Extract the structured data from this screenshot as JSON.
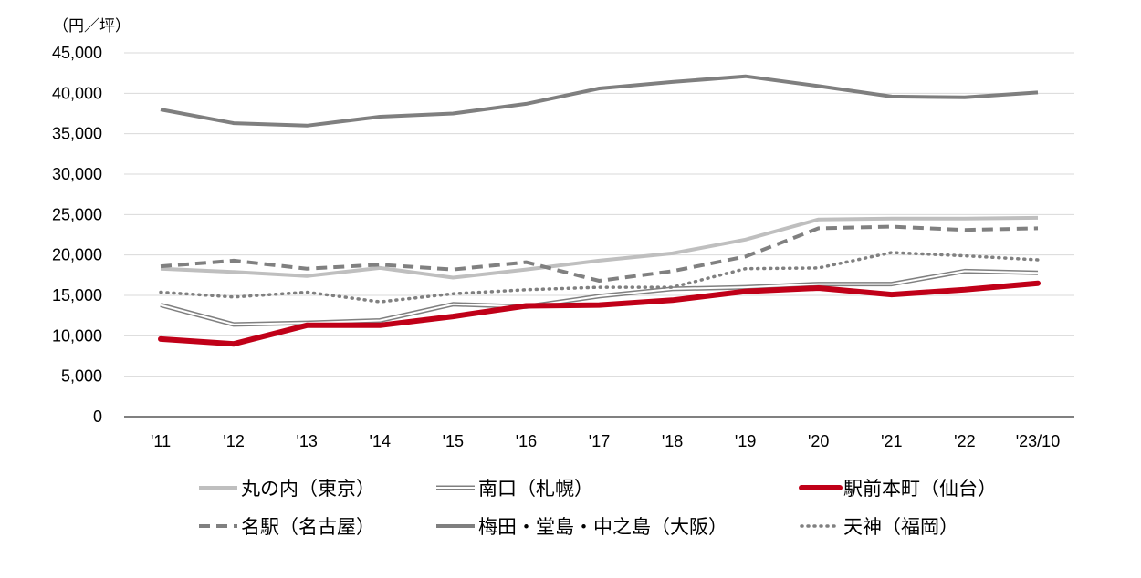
{
  "chart_data": {
    "type": "line",
    "unit_label": "（円／坪）",
    "categories": [
      "'11",
      "'12",
      "'13",
      "'14",
      "'15",
      "'16",
      "'17",
      "'18",
      "'19",
      "'20",
      "'21",
      "'22",
      "'23/10"
    ],
    "ylim": [
      0,
      45000
    ],
    "yticks": [
      0,
      5000,
      10000,
      15000,
      20000,
      25000,
      30000,
      35000,
      40000,
      45000
    ],
    "ytick_labels": [
      "0",
      "5,000",
      "10,000",
      "15,000",
      "20,000",
      "25,000",
      "30,000",
      "35,000",
      "40,000",
      "45,000"
    ],
    "grid": true,
    "legend_position": "bottom",
    "series": [
      {
        "id": "marunouchi",
        "name": "丸の内（東京）",
        "color": "#bfbfbf",
        "style": "solid",
        "values": [
          18300,
          17900,
          17400,
          18400,
          17200,
          18200,
          19300,
          20200,
          21900,
          24400,
          24500,
          24500,
          24600
        ]
      },
      {
        "id": "meieki",
        "name": "名駅（名古屋）",
        "color": "#808080",
        "style": "dashed",
        "values": [
          18600,
          19300,
          18300,
          18800,
          18200,
          19100,
          16800,
          18000,
          19800,
          23300,
          23500,
          23100,
          23300
        ]
      },
      {
        "id": "minamiguchi",
        "name": "南口（札幌）",
        "color": "#808080",
        "style": "double",
        "values": [
          13800,
          11400,
          11600,
          11900,
          13900,
          13600,
          14900,
          15800,
          16000,
          16400,
          16400,
          18000,
          17800
        ]
      },
      {
        "id": "umeda",
        "name": "梅田・堂島・中之島（大阪）",
        "color": "#7f7f7f",
        "style": "solid-thick",
        "values": [
          38000,
          36300,
          36000,
          37100,
          37500,
          38700,
          40600,
          41400,
          42100,
          40900,
          39600,
          39500,
          40100
        ]
      },
      {
        "id": "ekimae",
        "name": "駅前本町（仙台）",
        "color": "#c00018",
        "style": "solid-bold",
        "values": [
          9600,
          9000,
          11300,
          11300,
          12400,
          13700,
          13800,
          14400,
          15500,
          15900,
          15100,
          15700,
          16500
        ]
      },
      {
        "id": "tenjin",
        "name": "天神（福岡）",
        "color": "#808080",
        "style": "dotted",
        "values": [
          15400,
          14800,
          15400,
          14200,
          15200,
          15700,
          16000,
          16000,
          18300,
          18400,
          20300,
          19900,
          19400
        ]
      }
    ]
  }
}
